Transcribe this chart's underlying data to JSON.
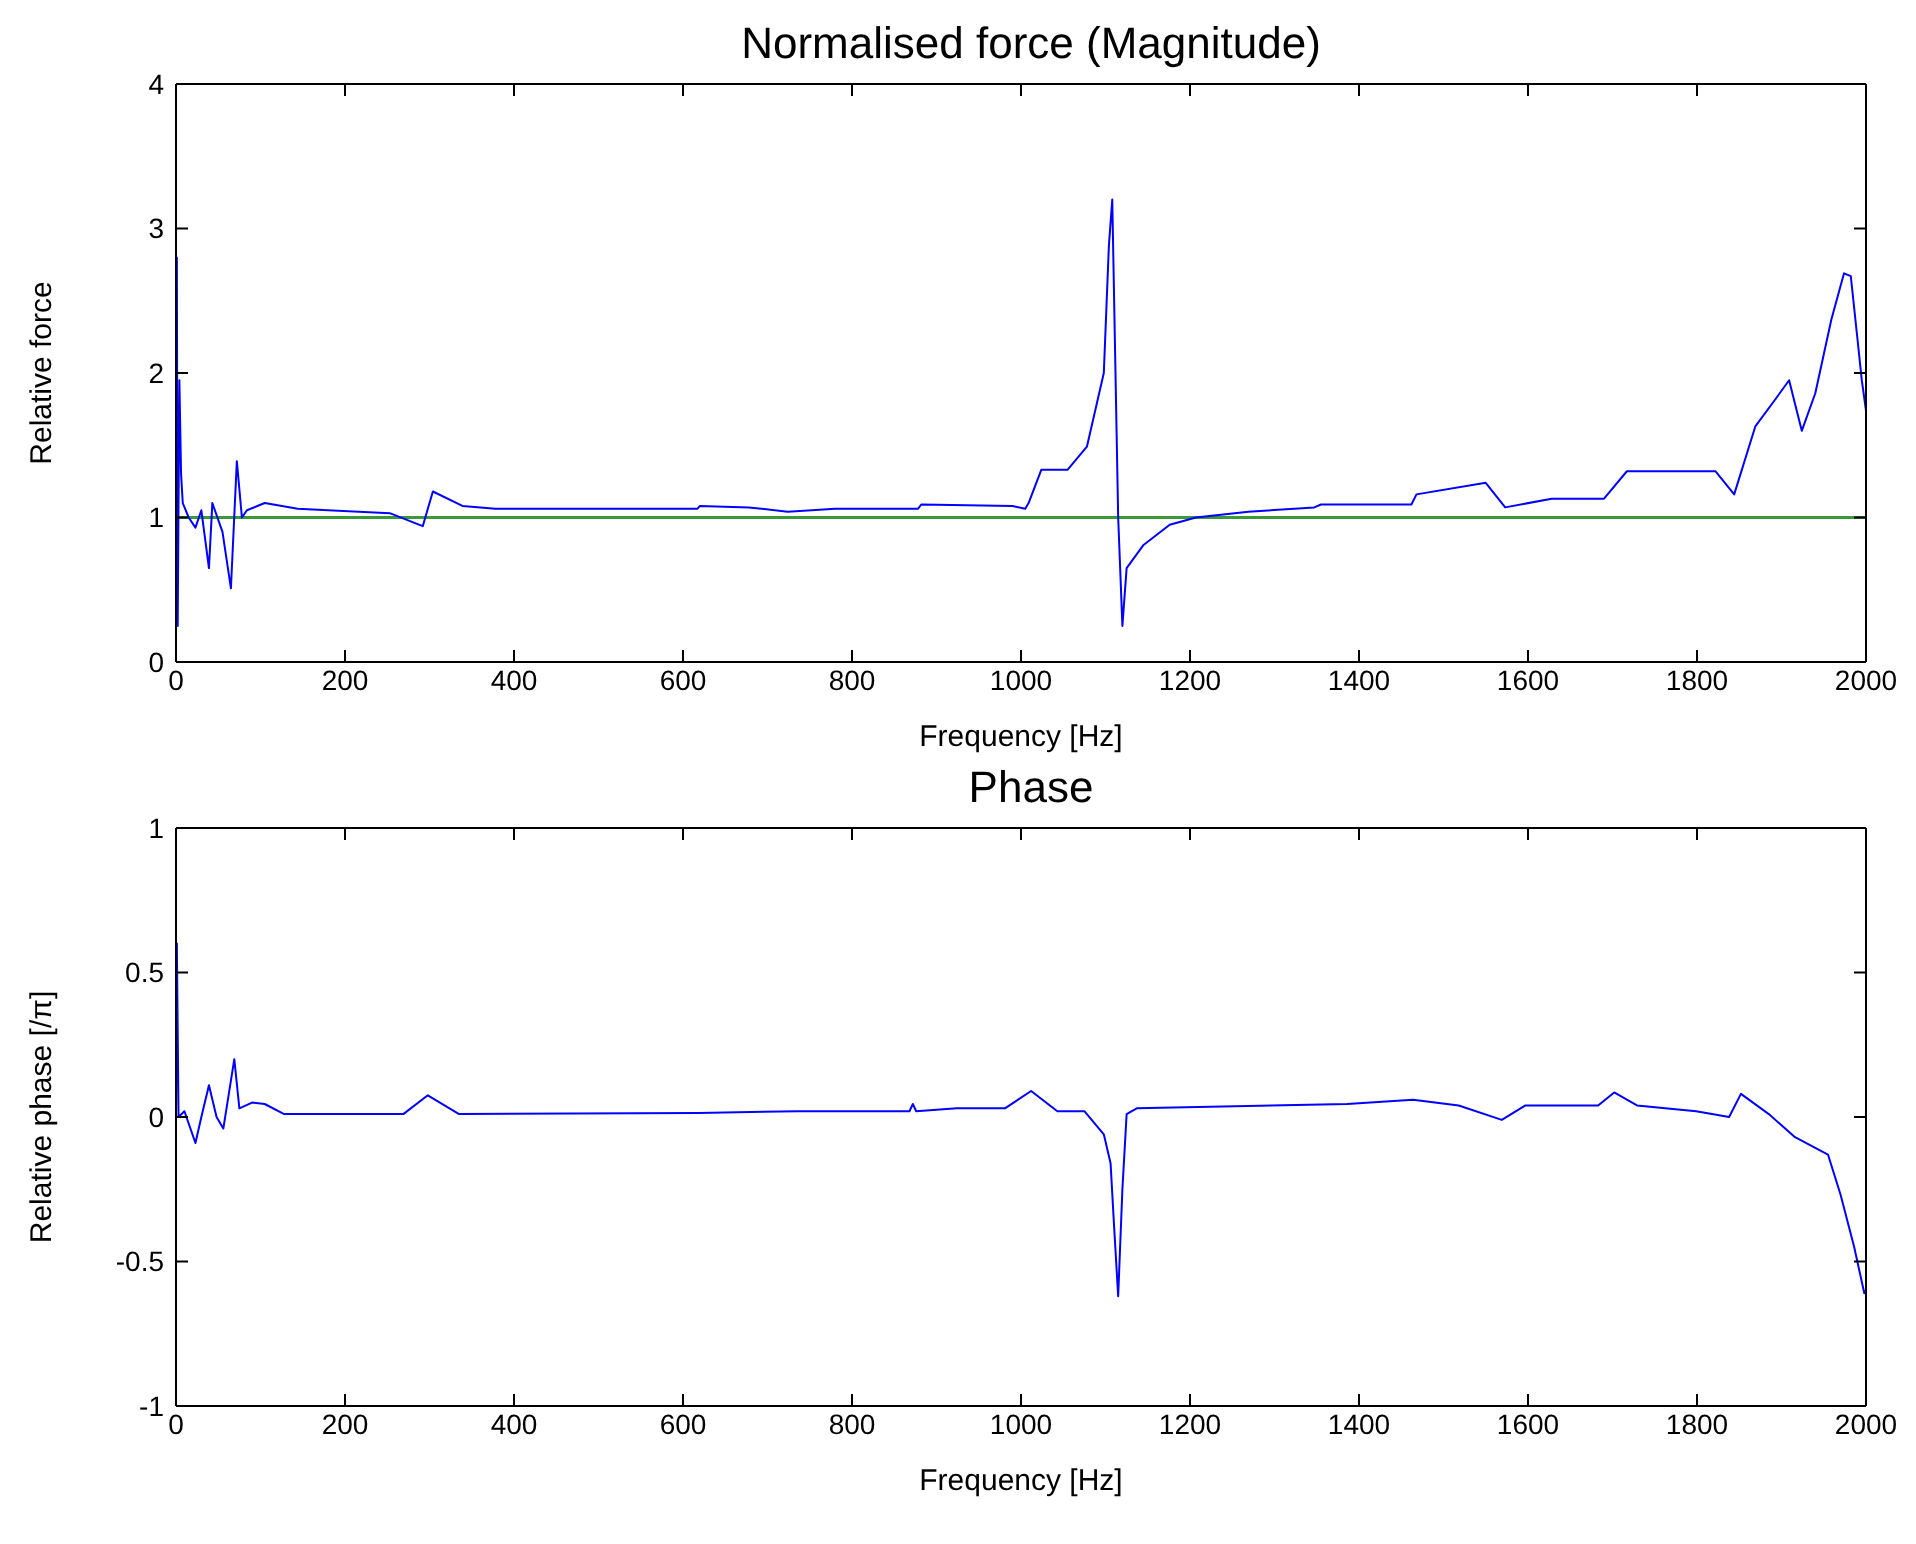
{
  "chart_data": [
    {
      "type": "line",
      "title": "Normalised force (Magnitude)",
      "xlabel": "Frequency [Hz]",
      "ylabel": "Relative force",
      "xlim": [
        0,
        2000
      ],
      "xticks": [
        0,
        200,
        400,
        600,
        800,
        1000,
        1200,
        1400,
        1600,
        1800,
        2000
      ],
      "ylim": [
        0,
        4
      ],
      "yticks": [
        0,
        1,
        2,
        3,
        4
      ],
      "grid": false,
      "legend": false,
      "x": [
        0,
        1,
        2,
        4,
        6,
        8,
        15,
        23,
        30,
        39,
        43,
        55,
        65,
        72,
        78,
        84,
        105,
        144,
        253,
        292,
        304,
        339,
        378,
        617,
        620,
        678,
        724,
        780,
        878,
        882,
        990,
        1005,
        1009,
        1024,
        1055,
        1078,
        1098,
        1104,
        1108,
        1115,
        1120,
        1125,
        1145,
        1176,
        1207,
        1269,
        1347,
        1355,
        1462,
        1468,
        1550,
        1573,
        1628,
        1690,
        1717,
        1822,
        1844,
        1869,
        1893,
        1909,
        1924,
        1940,
        1959,
        1974,
        1982,
        1990,
        1995,
        2000
      ],
      "series": [
        {
          "color": "#0000ff",
          "values": [
            1.0,
            2.8,
            0.25,
            1.95,
            1.3,
            1.1,
            1.0,
            0.93,
            1.05,
            0.65,
            1.1,
            0.9,
            0.51,
            1.39,
            1.0,
            1.05,
            1.1,
            1.06,
            1.03,
            0.94,
            1.18,
            1.08,
            1.06,
            1.06,
            1.08,
            1.07,
            1.04,
            1.06,
            1.06,
            1.09,
            1.08,
            1.06,
            1.1,
            1.33,
            1.33,
            1.49,
            2.0,
            2.88,
            3.2,
            1.0,
            0.25,
            0.65,
            0.81,
            0.95,
            1.0,
            1.04,
            1.07,
            1.09,
            1.09,
            1.16,
            1.24,
            1.07,
            1.13,
            1.13,
            1.32,
            1.32,
            1.16,
            1.63,
            1.82,
            1.95,
            1.6,
            1.86,
            2.37,
            2.69,
            2.67,
            2.23,
            1.95,
            1.74
          ]
        }
      ],
      "ref_lines": [
        {
          "axis": "y",
          "value": 1,
          "color": "#3a9a3a"
        }
      ]
    },
    {
      "type": "line",
      "title": "Phase",
      "xlabel": "Frequency [Hz]",
      "ylabel": "Relative phase [/π]",
      "xlim": [
        0,
        2000
      ],
      "xticks": [
        0,
        200,
        400,
        600,
        800,
        1000,
        1200,
        1400,
        1600,
        1800,
        2000
      ],
      "ylim": [
        -1,
        1
      ],
      "yticks": [
        -1,
        -0.5,
        0,
        0.5,
        1
      ],
      "grid": false,
      "legend": false,
      "x": [
        0,
        1,
        3,
        10,
        23,
        30,
        39,
        48,
        56,
        69,
        75,
        90,
        105,
        128,
        269,
        298,
        335,
        618,
        736,
        868,
        872,
        876,
        924,
        981,
        1012,
        1043,
        1075,
        1098,
        1106,
        1110,
        1115,
        1120,
        1125,
        1137,
        1386,
        1464,
        1518,
        1569,
        1597,
        1683,
        1702,
        1729,
        1799,
        1838,
        1852,
        1885,
        1916,
        1955,
        1970,
        1986,
        1998,
        2000
      ],
      "series": [
        {
          "color": "#0000ff",
          "values": [
            0.0,
            0.6,
            0.0,
            0.02,
            -0.09,
            0.0,
            0.11,
            0.0,
            -0.04,
            0.2,
            0.03,
            0.05,
            0.045,
            0.01,
            0.01,
            0.075,
            0.01,
            0.014,
            0.02,
            0.02,
            0.045,
            0.02,
            0.03,
            0.03,
            0.09,
            0.02,
            0.02,
            -0.06,
            -0.16,
            -0.37,
            -0.62,
            -0.25,
            0.01,
            0.03,
            0.045,
            0.06,
            0.04,
            -0.01,
            0.04,
            0.04,
            0.085,
            0.04,
            0.02,
            0.0,
            0.08,
            0.01,
            -0.07,
            -0.13,
            -0.27,
            -0.45,
            -0.61,
            -0.6
          ]
        }
      ]
    }
  ]
}
